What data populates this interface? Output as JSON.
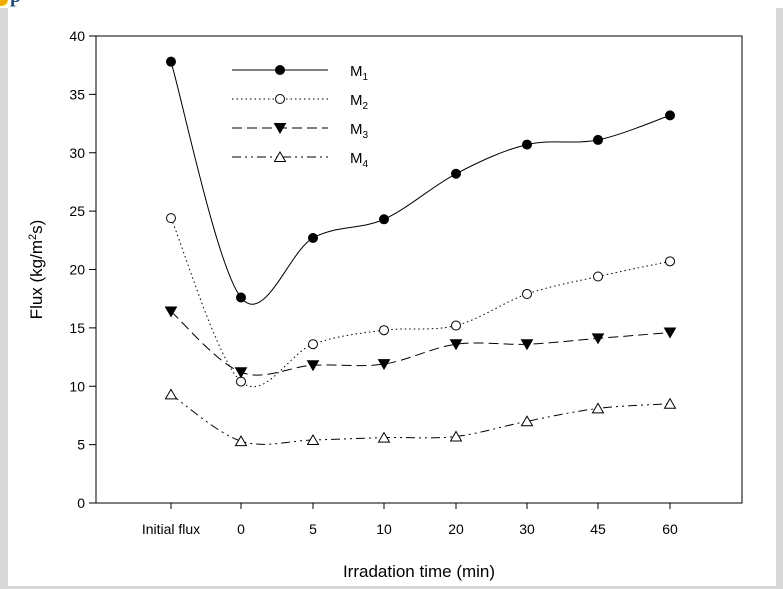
{
  "page": {
    "title_fragment": "p"
  },
  "chart_data": {
    "type": "line",
    "categories": [
      "Initial flux",
      "0",
      "5",
      "10",
      "20",
      "30",
      "45",
      "60"
    ],
    "xlabel": "Irradation time (min)",
    "ylabel": "Flux (kg/m2s)",
    "ylim": [
      0,
      40
    ],
    "yticks": [
      0,
      5,
      10,
      15,
      20,
      25,
      30,
      35,
      40
    ],
    "grid": false,
    "legend_position": "top-left",
    "series": [
      {
        "name": "M1",
        "name_base": "M",
        "name_sub": "1",
        "marker": "filled-circle",
        "dash": "solid",
        "values": [
          37.8,
          17.6,
          22.7,
          24.3,
          28.2,
          30.7,
          31.1,
          33.2
        ]
      },
      {
        "name": "M2",
        "name_base": "M",
        "name_sub": "2",
        "marker": "open-circle",
        "dash": "dotted",
        "values": [
          24.4,
          10.4,
          13.6,
          14.8,
          15.2,
          17.9,
          19.4,
          20.7
        ]
      },
      {
        "name": "M3",
        "name_base": "M",
        "name_sub": "3",
        "marker": "filled-triangle-down",
        "dash": "dashed",
        "values": [
          16.4,
          11.2,
          11.8,
          11.9,
          13.6,
          13.6,
          14.1,
          14.6
        ]
      },
      {
        "name": "M4",
        "name_base": "M",
        "name_sub": "4",
        "marker": "open-triangle-up",
        "dash": "dash-dot-dot",
        "values": [
          9.3,
          5.3,
          5.4,
          5.6,
          5.7,
          7.0,
          8.1,
          8.5
        ]
      }
    ]
  }
}
